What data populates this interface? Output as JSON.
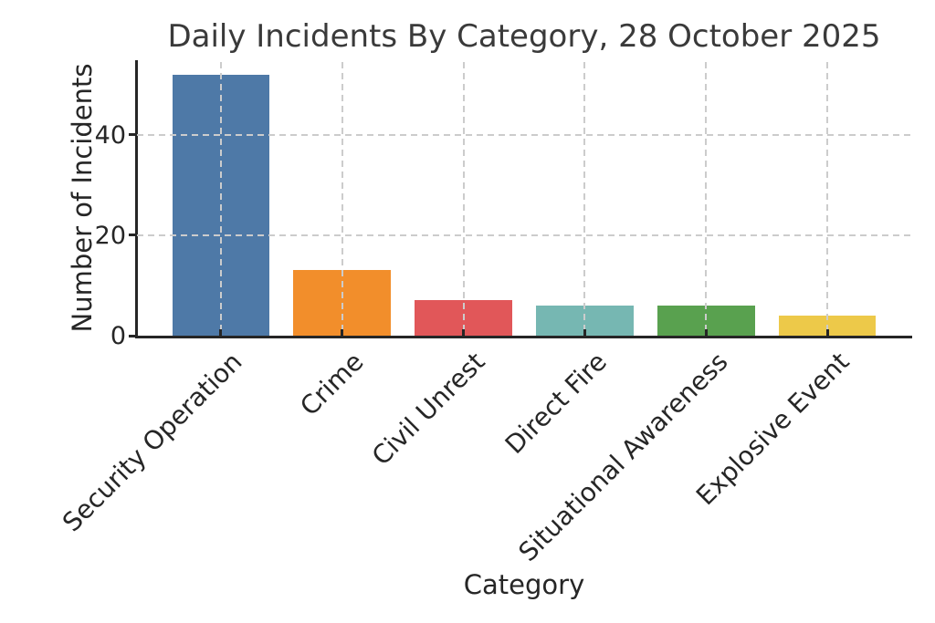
{
  "chart_data": {
    "type": "bar",
    "title": "Daily Incidents By Category, 28 October 2025",
    "xlabel": "Category",
    "ylabel": "Number of Incidents",
    "categories": [
      "Security Operation",
      "Crime",
      "Civil Unrest",
      "Direct Fire",
      "Situational Awareness",
      "Explosive Event"
    ],
    "values": [
      52,
      13,
      7,
      6,
      6,
      4
    ],
    "bar_colors": [
      "#4E79A7",
      "#F28E2B",
      "#E15759",
      "#76B7B2",
      "#59A14F",
      "#EDC949"
    ],
    "yticks": [
      0,
      20,
      40
    ],
    "ylim": [
      0,
      54.5
    ],
    "xlim": [
      -0.69,
      5.69
    ],
    "bar_width_units": 0.8,
    "grid": "dashed gridlines on both axes, drawn over bars",
    "legend": "none",
    "background_color": "#FFFFFF",
    "spine_color": "#262626",
    "grid_color": "#CCCCCC",
    "text_color": "#262626",
    "title_color": "#3A3A3A"
  }
}
